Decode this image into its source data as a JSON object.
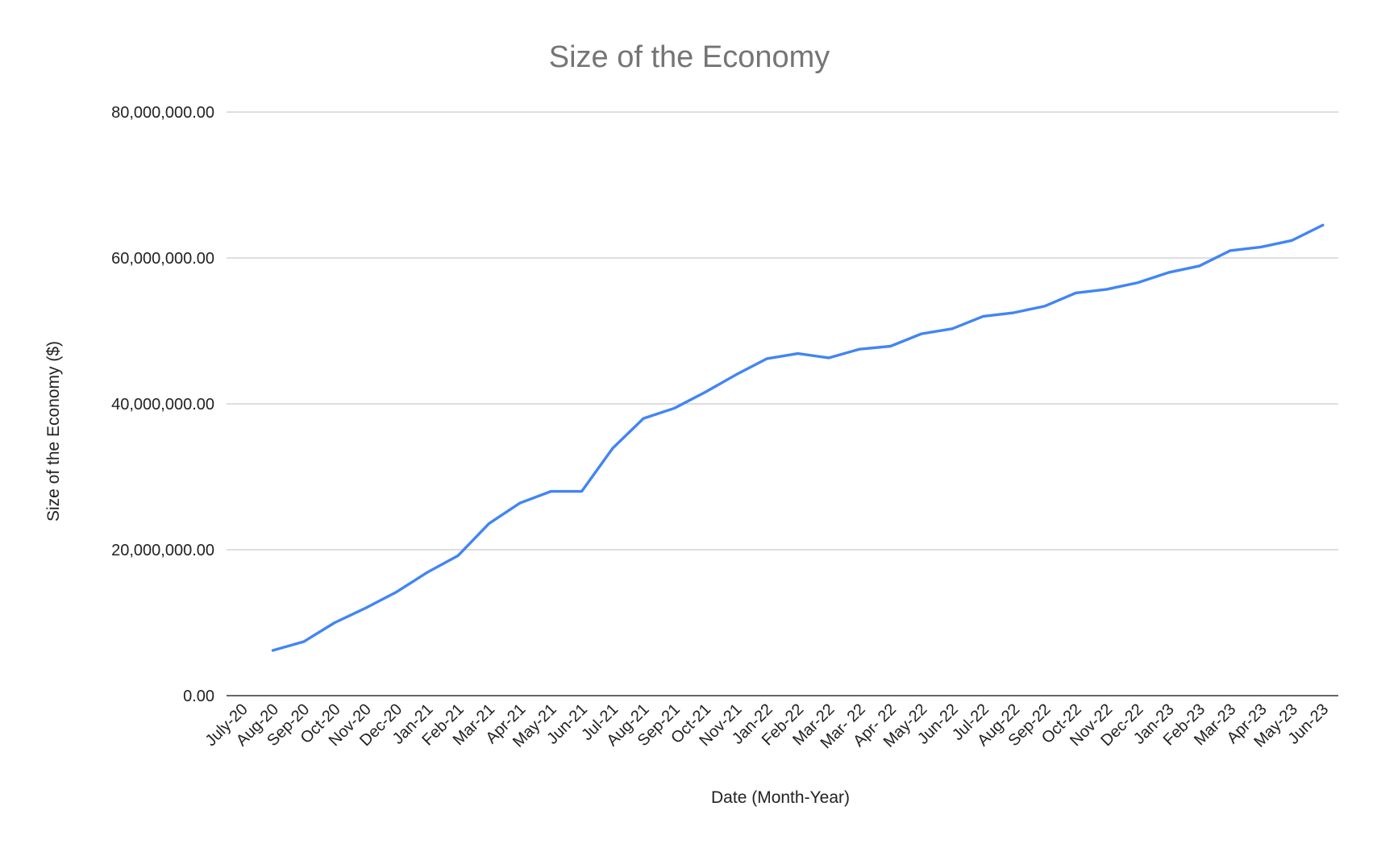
{
  "chart_data": {
    "type": "line",
    "title": "Size of the Economy",
    "xlabel": "Date (Month-Year)",
    "ylabel": "Size of the Economy ($)",
    "ylim": [
      0,
      80000000
    ],
    "yticks": [
      0,
      20000000,
      40000000,
      60000000,
      80000000
    ],
    "ytick_labels": [
      "0.00",
      "20,000,000.00",
      "40,000,000.00",
      "60,000,000.00",
      "80,000,000.00"
    ],
    "grid": true,
    "legend": "none",
    "categories": [
      "July-20",
      "Aug-20",
      "Sep-20",
      "Oct-20",
      "Nov-20",
      "Dec-20",
      "Jan-21",
      "Feb-21",
      "Mar-21",
      "Apr-21",
      "May-21",
      "Jun-21",
      "Jul-21",
      "Aug-21",
      "Sep-21",
      "Oct-21",
      "Nov-21",
      "Jan-22",
      "Feb-22",
      "Mar-22",
      "Mar- 22",
      "Apr- 22",
      "May-22",
      "Jun-22",
      "Jul-22",
      "Aug-22",
      "Sep-22",
      "Oct-22",
      "Nov-22",
      "Dec-22",
      "Jan-23",
      "Feb-23",
      "Mar-23",
      "Apr-23",
      "May-23",
      "Jun-23"
    ],
    "series": [
      {
        "color": "#4285f4",
        "values": [
          null,
          6200000,
          7400000,
          10000000,
          12000000,
          14200000,
          16900000,
          19200000,
          23600000,
          26400000,
          28000000,
          28000000,
          33900000,
          38000000,
          39400000,
          41600000,
          44000000,
          46200000,
          46900000,
          46300000,
          47500000,
          47900000,
          49600000,
          50300000,
          52000000,
          52500000,
          53400000,
          55200000,
          55700000,
          56600000,
          58000000,
          58900000,
          61000000,
          61500000,
          62400000,
          64500000
        ]
      }
    ]
  }
}
